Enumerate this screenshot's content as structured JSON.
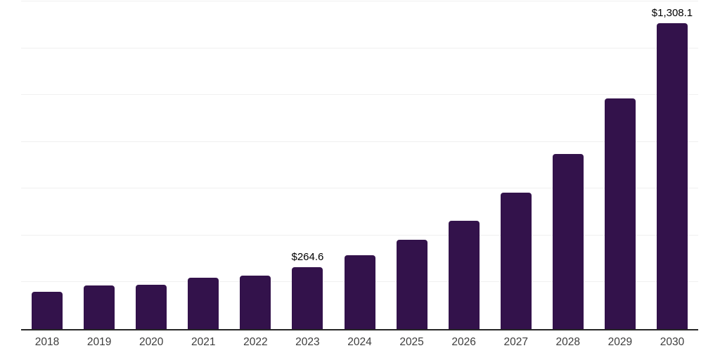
{
  "chart_data": {
    "type": "bar",
    "title": "",
    "xlabel": "",
    "ylabel": "",
    "categories": [
      "2018",
      "2019",
      "2020",
      "2021",
      "2022",
      "2023",
      "2024",
      "2025",
      "2026",
      "2027",
      "2028",
      "2029",
      "2030"
    ],
    "values": [
      159,
      186,
      189,
      219,
      228,
      264.6,
      315,
      382,
      463,
      583,
      748,
      985,
      1308.1
    ],
    "data_labels": [
      "",
      "",
      "",
      "",
      "",
      "$264.6",
      "",
      "",
      "",
      "",
      "",
      "",
      "$1,308.1"
    ],
    "ylim": [
      0,
      1400
    ],
    "gridline_step": 200,
    "grid": "horizontal-only",
    "legend": "none",
    "y_tick_labels_visible": false,
    "colors": {
      "bar": "#33124b",
      "axis_line": "#262626",
      "gridline": "#f0f0f0",
      "x_label": "#3d3d3d",
      "value_label": "#000000",
      "background": "#ffffff"
    }
  }
}
